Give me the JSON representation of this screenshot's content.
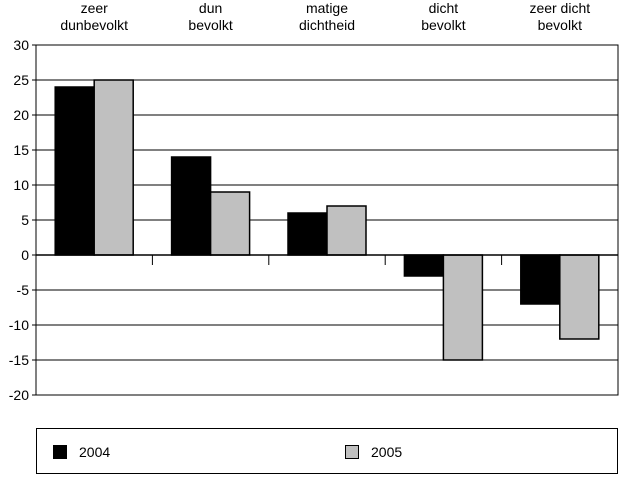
{
  "chart_data": {
    "type": "bar",
    "categories": [
      [
        "zeer",
        "dunbevolkt"
      ],
      [
        "dun",
        "bevolkt"
      ],
      [
        "matige",
        "dichtheid"
      ],
      [
        "dicht",
        "bevolkt"
      ],
      [
        "zeer dicht",
        "bevolkt"
      ]
    ],
    "series": [
      {
        "name": "2004",
        "color": "#000000",
        "values": [
          24,
          14,
          6,
          -3,
          -7
        ]
      },
      {
        "name": "2005",
        "color": "#c0c0c0",
        "values": [
          25,
          9,
          7,
          -15,
          -12
        ]
      }
    ],
    "ylim": [
      -20,
      30
    ],
    "yticks": [
      "30",
      "25",
      "20",
      "15",
      "10",
      "5",
      "0",
      "-5",
      "-10",
      "-15",
      "-20"
    ],
    "grid": true,
    "legend_position": "bottom"
  }
}
